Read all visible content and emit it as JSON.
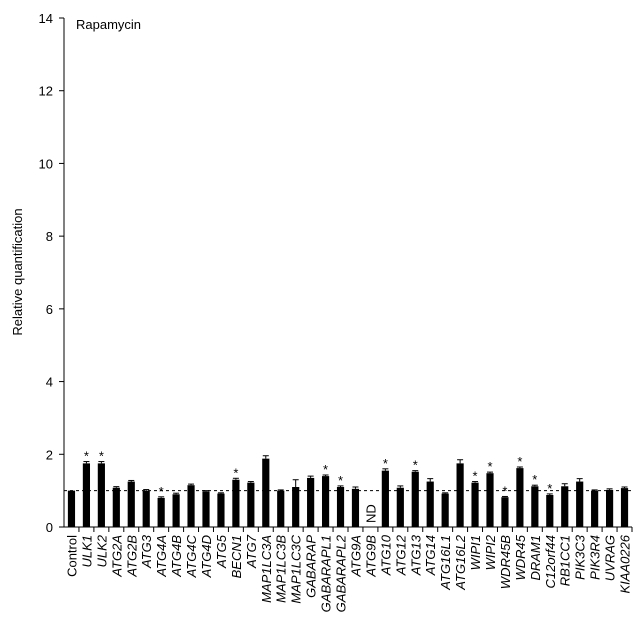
{
  "chart_data": {
    "type": "bar",
    "annotation": "Rapamycin",
    "ylabel": "Relative quantification",
    "xlabel": "",
    "ylim": [
      0,
      14
    ],
    "yticks": [
      0,
      2,
      4,
      6,
      8,
      10,
      12,
      14
    ],
    "reference_line": 1,
    "categories": [
      "Control",
      "ULK1",
      "ULK2",
      "ATG2A",
      "ATG2B",
      "ATG3",
      "ATG4A",
      "ATG4B",
      "ATG4C",
      "ATG4D",
      "ATG5",
      "BECN1",
      "ATG7",
      "MAP1LC3A",
      "MAP1LC3B",
      "MAP1LC3C",
      "GABARAP",
      "GABARAPL1",
      "GABARAPL2",
      "ATG9A",
      "ATG9B",
      "ATG10",
      "ATG12",
      "ATG13",
      "ATG14",
      "ATG16L1",
      "ATG16L2",
      "WIPI1",
      "WIPI2",
      "WDR45B",
      "WDR45",
      "DRAM1",
      "C12orf44",
      "RB1CC1",
      "PIK3C3",
      "PIK3R4",
      "UVRAG",
      "KIAA0226"
    ],
    "italic_categories": [
      "ULK1",
      "ULK2",
      "ATG2A",
      "ATG2B",
      "ATG3",
      "ATG4A",
      "ATG4B",
      "ATG4C",
      "ATG4D",
      "ATG5",
      "BECN1",
      "ATG7",
      "MAP1LC3A",
      "MAP1LC3B",
      "MAP1LC3C",
      "GABARAP",
      "GABARAPL1",
      "GABARAPL2",
      "ATG9A",
      "ATG9B",
      "ATG10",
      "ATG12",
      "ATG13",
      "ATG14",
      "ATG16L1",
      "ATG16L2",
      "WIPI1",
      "WIPI2",
      "WDR45B",
      "WDR45",
      "DRAM1",
      "C12orf44",
      "RB1CC1",
      "PIK3C3",
      "PIK3R4",
      "UVRAG",
      "KIAA0226"
    ],
    "values": [
      1.0,
      1.75,
      1.75,
      1.08,
      1.25,
      1.0,
      0.8,
      0.9,
      1.15,
      0.98,
      0.92,
      1.3,
      1.22,
      1.88,
      1.0,
      1.1,
      1.35,
      1.4,
      1.1,
      1.05,
      null,
      1.55,
      1.08,
      1.52,
      1.25,
      0.92,
      1.75,
      1.22,
      1.48,
      0.82,
      1.62,
      1.12,
      0.88,
      1.12,
      1.25,
      1.0,
      1.02,
      1.07
    ],
    "errors": [
      0,
      0.05,
      0.05,
      0.03,
      0.03,
      0.03,
      0.03,
      0.03,
      0.03,
      0.02,
      0.02,
      0.04,
      0.03,
      0.08,
      0.02,
      0.2,
      0.05,
      0.03,
      0.03,
      0.05,
      0,
      0.05,
      0.05,
      0.03,
      0.08,
      0.02,
      0.1,
      0.03,
      0.03,
      0.02,
      0.03,
      0.03,
      0.03,
      0.07,
      0.08,
      0.02,
      0.03,
      0.03
    ],
    "significant": [
      false,
      true,
      true,
      false,
      false,
      false,
      true,
      false,
      false,
      false,
      false,
      true,
      false,
      false,
      false,
      false,
      false,
      true,
      true,
      false,
      false,
      true,
      false,
      true,
      false,
      false,
      false,
      true,
      true,
      true,
      true,
      true,
      true,
      false,
      false,
      false,
      false,
      false
    ],
    "significance_marker": "*",
    "not_detected": [
      "ATG9B"
    ],
    "not_detected_label": "ND",
    "grid": false,
    "legend": "none",
    "bar_color": "#000000"
  }
}
